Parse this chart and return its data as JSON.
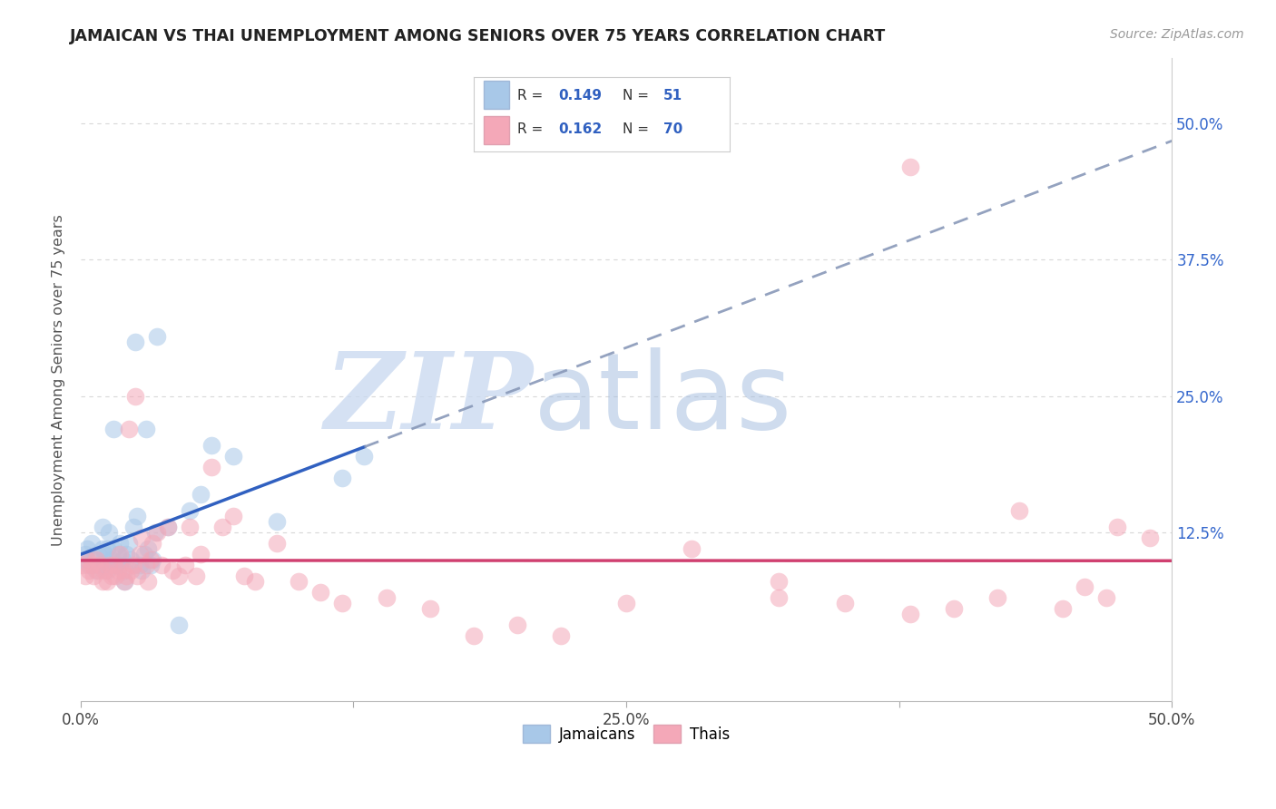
{
  "title": "JAMAICAN VS THAI UNEMPLOYMENT AMONG SENIORS OVER 75 YEARS CORRELATION CHART",
  "source": "Source: ZipAtlas.com",
  "ylabel": "Unemployment Among Seniors over 75 years",
  "xlim": [
    0.0,
    0.5
  ],
  "ylim": [
    -0.03,
    0.56
  ],
  "xtick_positions": [
    0.0,
    0.125,
    0.25,
    0.375,
    0.5
  ],
  "xticklabels": [
    "0.0%",
    "",
    "25.0%",
    "",
    "50.0%"
  ],
  "ytick_positions": [
    0.0,
    0.125,
    0.25,
    0.375,
    0.5
  ],
  "ytick_labels_right": [
    "",
    "12.5%",
    "25.0%",
    "37.5%",
    "50.0%"
  ],
  "legend_r_blue": "0.149",
  "legend_n_blue": "51",
  "legend_r_pink": "0.162",
  "legend_n_pink": "70",
  "blue_scatter_color": "#a8c8e8",
  "pink_scatter_color": "#f4a8b8",
  "blue_line_color": "#3060c0",
  "pink_line_color": "#d04070",
  "dashed_line_color": "#8898b8",
  "grid_color": "#d8d8d8",
  "watermark_color": "#c8d8f0",
  "jamaican_x": [
    0.001,
    0.002,
    0.003,
    0.004,
    0.005,
    0.006,
    0.007,
    0.008,
    0.009,
    0.01,
    0.01,
    0.01,
    0.011,
    0.012,
    0.012,
    0.013,
    0.013,
    0.014,
    0.015,
    0.015,
    0.016,
    0.017,
    0.018,
    0.018,
    0.019,
    0.02,
    0.02,
    0.021,
    0.022,
    0.023,
    0.024,
    0.025,
    0.026,
    0.027,
    0.028,
    0.029,
    0.03,
    0.031,
    0.032,
    0.033,
    0.034,
    0.035,
    0.04,
    0.045,
    0.05,
    0.055,
    0.06,
    0.07,
    0.09,
    0.12,
    0.13
  ],
  "jamaican_y": [
    0.1,
    0.105,
    0.11,
    0.095,
    0.115,
    0.1,
    0.09,
    0.105,
    0.095,
    0.13,
    0.11,
    0.095,
    0.105,
    0.09,
    0.11,
    0.095,
    0.125,
    0.1,
    0.22,
    0.11,
    0.095,
    0.105,
    0.115,
    0.095,
    0.1,
    0.09,
    0.08,
    0.105,
    0.115,
    0.1,
    0.13,
    0.3,
    0.14,
    0.095,
    0.09,
    0.105,
    0.22,
    0.11,
    0.095,
    0.1,
    0.125,
    0.305,
    0.13,
    0.04,
    0.145,
    0.16,
    0.205,
    0.195,
    0.135,
    0.175,
    0.195
  ],
  "thai_x": [
    0.001,
    0.002,
    0.003,
    0.004,
    0.005,
    0.006,
    0.007,
    0.008,
    0.009,
    0.01,
    0.011,
    0.012,
    0.013,
    0.014,
    0.015,
    0.016,
    0.017,
    0.018,
    0.019,
    0.02,
    0.021,
    0.022,
    0.023,
    0.024,
    0.025,
    0.026,
    0.027,
    0.028,
    0.03,
    0.031,
    0.032,
    0.033,
    0.035,
    0.037,
    0.04,
    0.042,
    0.045,
    0.048,
    0.05,
    0.053,
    0.055,
    0.06,
    0.065,
    0.07,
    0.075,
    0.08,
    0.09,
    0.1,
    0.11,
    0.12,
    0.14,
    0.16,
    0.18,
    0.2,
    0.22,
    0.25,
    0.28,
    0.32,
    0.35,
    0.38,
    0.4,
    0.42,
    0.45,
    0.47,
    0.49,
    0.32,
    0.38,
    0.43,
    0.46,
    0.475
  ],
  "thai_y": [
    0.095,
    0.085,
    0.1,
    0.09,
    0.095,
    0.085,
    0.1,
    0.09,
    0.095,
    0.08,
    0.09,
    0.08,
    0.095,
    0.085,
    0.095,
    0.085,
    0.09,
    0.105,
    0.09,
    0.08,
    0.085,
    0.22,
    0.09,
    0.095,
    0.25,
    0.085,
    0.105,
    0.12,
    0.095,
    0.08,
    0.1,
    0.115,
    0.125,
    0.095,
    0.13,
    0.09,
    0.085,
    0.095,
    0.13,
    0.085,
    0.105,
    0.185,
    0.13,
    0.14,
    0.085,
    0.08,
    0.115,
    0.08,
    0.07,
    0.06,
    0.065,
    0.055,
    0.03,
    0.04,
    0.03,
    0.06,
    0.11,
    0.065,
    0.06,
    0.05,
    0.055,
    0.065,
    0.055,
    0.065,
    0.12,
    0.08,
    0.46,
    0.145,
    0.075,
    0.13
  ]
}
